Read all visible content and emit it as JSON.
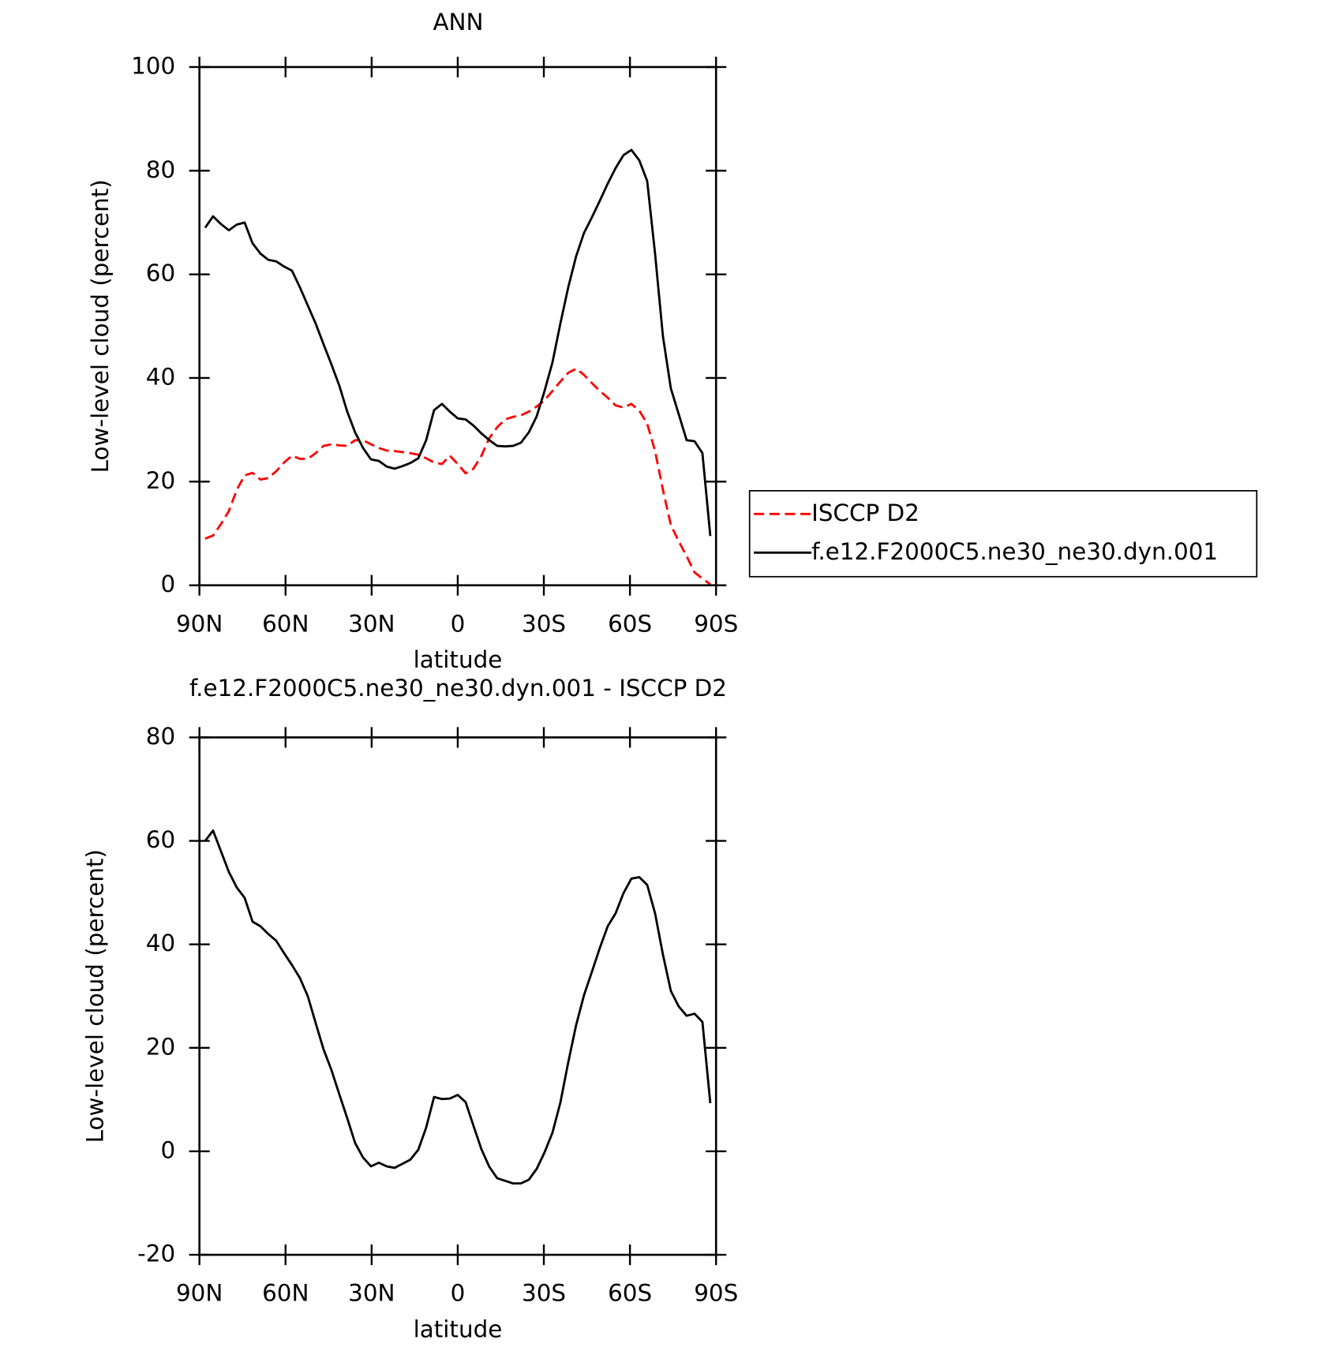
{
  "chart_data": [
    {
      "type": "line",
      "title": "ANN",
      "x_label": "latitude",
      "y_label": "Low-level cloud (percent)",
      "x": [
        88,
        85.25,
        82.5,
        79.75,
        77,
        74.25,
        71.5,
        68.75,
        66,
        63.25,
        60.5,
        57.75,
        55,
        52.25,
        49.5,
        46.75,
        44,
        41.25,
        38.5,
        35.75,
        33,
        30.25,
        27.5,
        24.75,
        22,
        19.25,
        16.5,
        13.75,
        11,
        8.25,
        5.5,
        2.75,
        0,
        -2.75,
        -5.5,
        -8.25,
        -11,
        -13.75,
        -16.5,
        -19.25,
        -22,
        -24.75,
        -27.5,
        -30.25,
        -33,
        -35.75,
        -38.5,
        -41.25,
        -44,
        -46.75,
        -49.5,
        -52.25,
        -55,
        -57.75,
        -60.5,
        -63.25,
        -66,
        -68.75,
        -71.5,
        -74.25,
        -77,
        -79.75,
        -82.5,
        -85.25,
        -88
      ],
      "series": [
        {
          "name": "ISCCP D2",
          "color": "#ff0000",
          "dash": "dashed",
          "values": [
            9.0,
            9.6,
            11.8,
            14.3,
            18.4,
            21.2,
            21.7,
            20.4,
            20.7,
            22.0,
            23.7,
            25.0,
            24.4,
            24.4,
            25.5,
            26.9,
            27.2,
            27.0,
            26.9,
            28.0,
            28.0,
            27.2,
            26.5,
            26.0,
            25.9,
            25.7,
            25.5,
            25.2,
            24.5,
            23.7,
            23.4,
            25.0,
            23.4,
            21.6,
            22.5,
            25.0,
            28.4,
            30.5,
            32.0,
            32.5,
            32.8,
            33.5,
            34.5,
            35.7,
            37.5,
            39.3,
            41.0,
            41.8,
            40.6,
            39.0,
            37.5,
            36.2,
            34.7,
            34.3,
            35.0,
            33.7,
            31.2,
            25.9,
            18.4,
            11.6,
            8.5,
            5.6,
            2.5,
            1.3,
            0.2
          ]
        },
        {
          "name": "f.e12.F2000C5.ne30_ne30.dyn.001",
          "color": "#000000",
          "dash": "solid",
          "values": [
            69.0,
            71.2,
            69.7,
            68.5,
            69.6,
            70.0,
            66.0,
            64.0,
            62.8,
            62.5,
            61.5,
            60.7,
            57.5,
            54.0,
            50.5,
            46.5,
            42.6,
            38.5,
            33.5,
            29.5,
            26.5,
            24.3,
            24.0,
            22.9,
            22.5,
            23.0,
            23.6,
            24.5,
            28.0,
            33.8,
            35.0,
            33.5,
            32.2,
            32.0,
            30.8,
            29.3,
            28.0,
            26.9,
            26.8,
            26.9,
            27.5,
            29.5,
            32.6,
            37.5,
            43.0,
            50.5,
            57.5,
            63.5,
            68.0,
            71.0,
            74.2,
            77.5,
            80.5,
            83.0,
            84.0,
            82.0,
            78.0,
            64.0,
            48.0,
            38.0,
            33.0,
            28.0,
            27.8,
            25.5,
            9.5
          ]
        }
      ],
      "xlim": [
        90,
        -90
      ],
      "xticks": [
        {
          "value": 90,
          "label": "90N"
        },
        {
          "value": 60,
          "label": "60N"
        },
        {
          "value": 30,
          "label": "30N"
        },
        0,
        {
          "value": -30,
          "label": "30S"
        },
        {
          "value": -60,
          "label": "60S"
        },
        {
          "value": -90,
          "label": "90S"
        }
      ],
      "ylim": [
        0,
        100
      ],
      "yticks": [
        0,
        20,
        40,
        60,
        80,
        100
      ],
      "legend": "right"
    },
    {
      "type": "line",
      "title": "f.e12.F2000C5.ne30_ne30.dyn.001 - ISCCP D2",
      "x_label": "latitude",
      "y_label": "Low-level cloud (percent)",
      "x": [
        88,
        85.25,
        82.5,
        79.75,
        77,
        74.25,
        71.5,
        68.75,
        66,
        63.25,
        60.5,
        57.75,
        55,
        52.25,
        49.5,
        46.75,
        44,
        41.25,
        38.5,
        35.75,
        33,
        30.25,
        27.5,
        24.75,
        22,
        19.25,
        16.5,
        13.75,
        11,
        8.25,
        5.5,
        2.75,
        0,
        -2.75,
        -5.5,
        -8.25,
        -11,
        -13.75,
        -16.5,
        -19.25,
        -22,
        -24.75,
        -27.5,
        -30.25,
        -33,
        -35.75,
        -38.5,
        -41.25,
        -44,
        -46.75,
        -49.5,
        -52.25,
        -55,
        -57.75,
        -60.5,
        -63.25,
        -66,
        -68.75,
        -71.5,
        -74.25,
        -77,
        -79.75,
        -82.5,
        -85.25,
        -88
      ],
      "series": [
        {
          "color": "#000000",
          "dash": "solid",
          "values": [
            60.0,
            62.0,
            58.0,
            54.0,
            51.0,
            49.0,
            44.4,
            43.5,
            42.0,
            40.7,
            38.3,
            36.0,
            33.5,
            30.0,
            24.8,
            19.7,
            15.7,
            11.0,
            6.4,
            1.6,
            -1.2,
            -2.9,
            -2.2,
            -2.9,
            -3.2,
            -2.4,
            -1.6,
            0.3,
            4.6,
            10.5,
            10.1,
            10.2,
            10.9,
            9.5,
            4.9,
            0.4,
            -3.0,
            -5.2,
            -5.7,
            -6.2,
            -6.2,
            -5.5,
            -3.4,
            -0.2,
            3.6,
            9.4,
            17.2,
            24.4,
            30.2,
            34.7,
            39.3,
            43.5,
            46.0,
            49.9,
            52.7,
            53.0,
            51.5,
            46.0,
            38.0,
            31.0,
            28.0,
            26.2,
            26.6,
            25.0,
            9.3
          ]
        }
      ],
      "xlim": [
        90,
        -90
      ],
      "xticks": [
        {
          "value": 90,
          "label": "90N"
        },
        {
          "value": 60,
          "label": "60N"
        },
        {
          "value": 30,
          "label": "30N"
        },
        0,
        {
          "value": -30,
          "label": "30S"
        },
        {
          "value": -60,
          "label": "60S"
        },
        {
          "value": -90,
          "label": "90S"
        }
      ],
      "ylim": [
        -20,
        80
      ],
      "yticks": [
        -20,
        0,
        20,
        40,
        60,
        80
      ]
    }
  ]
}
